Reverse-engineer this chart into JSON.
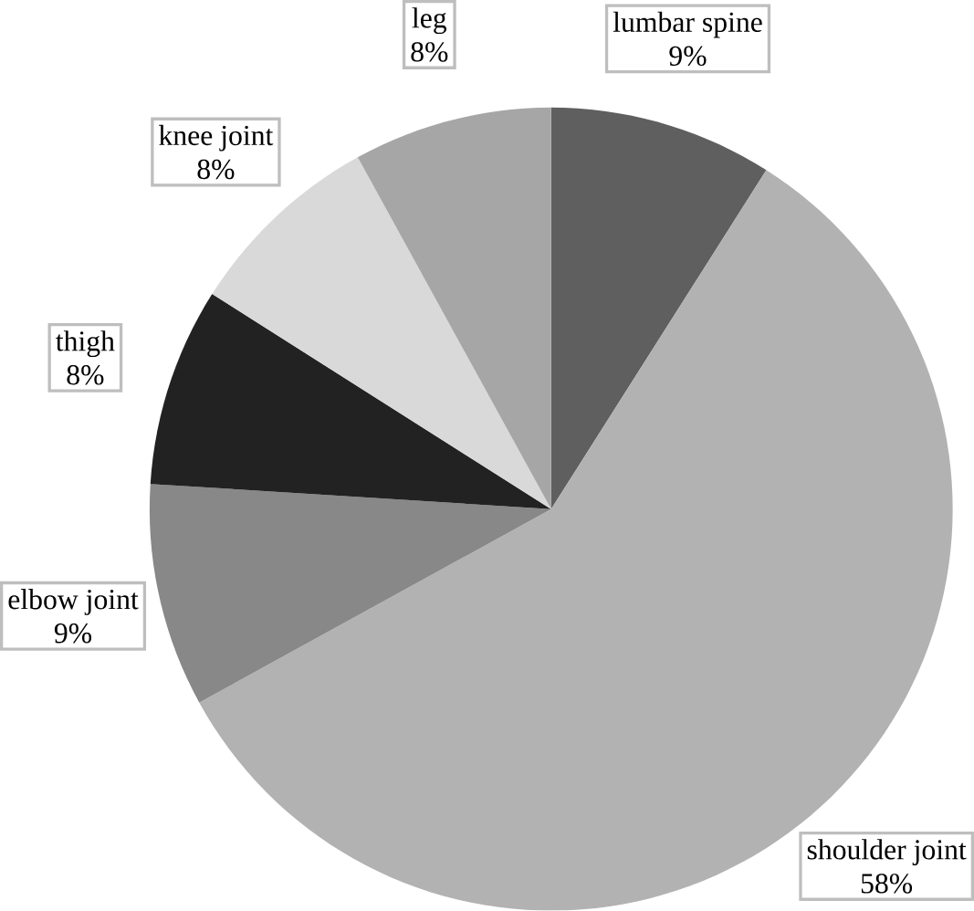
{
  "chart_data": {
    "type": "pie",
    "categories": [
      "lumbar spine",
      "shoulder joint",
      "elbow joint",
      "thigh",
      "knee joint",
      "leg"
    ],
    "values": [
      9,
      58,
      9,
      8,
      8,
      8
    ],
    "value_labels": [
      "9%",
      "58%",
      "9%",
      "8%",
      "8%",
      "8%"
    ],
    "colors": [
      "#5f5f5f",
      "#b2b2b2",
      "#888888",
      "#222222",
      "#d9d9d9",
      "#a6a6a6"
    ]
  }
}
